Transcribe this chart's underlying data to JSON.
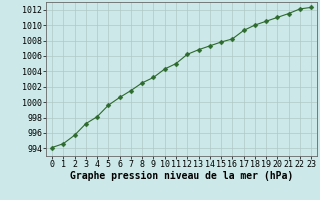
{
  "x": [
    0,
    1,
    2,
    3,
    4,
    5,
    6,
    7,
    8,
    9,
    10,
    11,
    12,
    13,
    14,
    15,
    16,
    17,
    18,
    19,
    20,
    21,
    22,
    23
  ],
  "y": [
    994.1,
    994.6,
    995.7,
    997.2,
    998.1,
    999.6,
    1000.6,
    1001.5,
    1002.5,
    1003.2,
    1004.3,
    1005.0,
    1006.2,
    1006.8,
    1007.3,
    1007.8,
    1008.2,
    1009.3,
    1010.0,
    1010.5,
    1011.0,
    1011.5,
    1012.1,
    1012.3
  ],
  "line_color": "#2d6a2d",
  "marker": "D",
  "marker_size": 2.5,
  "bg_color": "#cce8e8",
  "grid_color": "#b0c8c8",
  "ylabel_ticks": [
    994,
    996,
    998,
    1000,
    1002,
    1004,
    1006,
    1008,
    1010,
    1012
  ],
  "xlabel": "Graphe pression niveau de la mer (hPa)",
  "ylim": [
    993,
    1013
  ],
  "xlim": [
    -0.5,
    23.5
  ],
  "tick_fontsize": 6,
  "label_fontsize": 7
}
